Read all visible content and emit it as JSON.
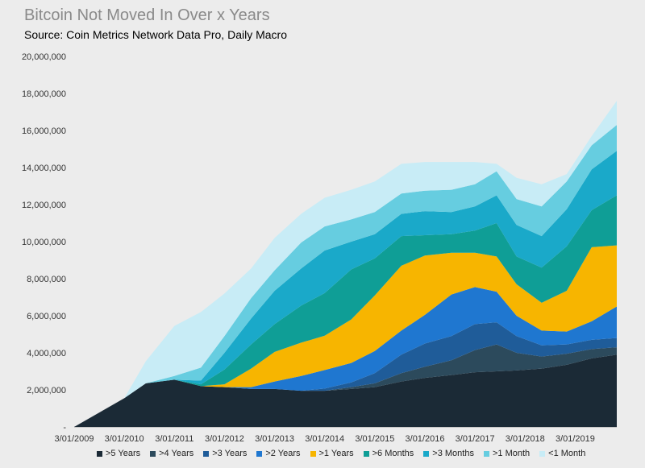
{
  "chart_data": {
    "type": "area",
    "title": "Bitcoin Not Moved In Over x Years",
    "subtitle": "Source: Coin Metrics Network Data Pro, Daily Macro",
    "xlabel": "",
    "ylabel": "",
    "ylim": [
      0,
      20000000
    ],
    "y_ticks": [
      "-",
      "2,000,000",
      "4,000,000",
      "6,000,000",
      "8,000,000",
      "10,000,000",
      "12,000,000",
      "14,000,000",
      "16,000,000",
      "18,000,000",
      "20,000,000"
    ],
    "x_ticks": [
      "3/01/2009",
      "3/01/2010",
      "3/01/2011",
      "3/01/2012",
      "3/01/2013",
      "3/01/2014",
      "3/01/2015",
      "3/01/2016",
      "3/01/2017",
      "3/01/2018",
      "3/01/2019"
    ],
    "x": [
      2009.17,
      2010.17,
      2010.6,
      2011.17,
      2011.7,
      2012.17,
      2012.7,
      2013.17,
      2013.7,
      2014.17,
      2014.7,
      2015.17,
      2015.7,
      2016.17,
      2016.7,
      2017.17,
      2017.6,
      2018.0,
      2018.5,
      2019.0,
      2019.5,
      2020.0
    ],
    "series": [
      {
        "name": ">5 Years",
        "color": "#1b2a36",
        "values": [
          0,
          1550000,
          2350000,
          2550000,
          2200000,
          2150000,
          2050000,
          2050000,
          1950000,
          1950000,
          2050000,
          2150000,
          2450000,
          2650000,
          2800000,
          2950000,
          3000000,
          3050000,
          3150000,
          3350000,
          3700000,
          3900000
        ]
      },
      {
        "name": ">4 Years",
        "color": "#2c4a5c",
        "values": [
          0,
          0,
          0,
          0,
          0,
          0,
          0,
          0,
          0,
          0,
          100000,
          200000,
          450000,
          600000,
          800000,
          1200000,
          1450000,
          950000,
          650000,
          600000,
          500000,
          400000
        ]
      },
      {
        "name": ">3 Years",
        "color": "#1f5c99",
        "values": [
          0,
          0,
          0,
          0,
          0,
          0,
          0,
          0,
          0,
          120000,
          250000,
          550000,
          1000000,
          1250000,
          1300000,
          1400000,
          1200000,
          900000,
          600000,
          500000,
          500000,
          500000
        ]
      },
      {
        "name": ">2 Years",
        "color": "#1f77d0",
        "values": [
          0,
          0,
          0,
          0,
          0,
          0,
          100000,
          400000,
          800000,
          1000000,
          1050000,
          1200000,
          1300000,
          1550000,
          2250000,
          2000000,
          1650000,
          1100000,
          800000,
          700000,
          1000000,
          1700000
        ]
      },
      {
        "name": ">1 Years",
        "color": "#f7b500",
        "values": [
          0,
          0,
          0,
          0,
          0,
          150000,
          1000000,
          1600000,
          1800000,
          1850000,
          2350000,
          3000000,
          3500000,
          3200000,
          2250000,
          1850000,
          1900000,
          1700000,
          1500000,
          2200000,
          4000000,
          3300000
        ]
      },
      {
        "name": ">6 Months",
        "color": "#0f9e96",
        "values": [
          0,
          0,
          0,
          0,
          100000,
          800000,
          1300000,
          1500000,
          2000000,
          2300000,
          2700000,
          2000000,
          1600000,
          1100000,
          1000000,
          1200000,
          1800000,
          1500000,
          1900000,
          2400000,
          2000000,
          2700000
        ]
      },
      {
        "name": ">3 Months",
        "color": "#1aa9c9",
        "values": [
          0,
          0,
          0,
          0,
          200000,
          900000,
          1400000,
          1800000,
          2000000,
          2300000,
          1500000,
          1300000,
          1200000,
          1300000,
          1200000,
          1300000,
          1500000,
          1700000,
          1700000,
          2000000,
          2200000,
          2400000
        ]
      },
      {
        "name": ">1 Month",
        "color": "#66cde0",
        "values": [
          0,
          0,
          0,
          200000,
          700000,
          900000,
          1100000,
          1100000,
          1400000,
          1300000,
          1200000,
          1200000,
          1100000,
          1100000,
          1200000,
          1200000,
          1300000,
          1400000,
          1600000,
          1500000,
          1300000,
          1400000
        ]
      },
      {
        "name": "<1 Month",
        "color": "#c8ecf6",
        "values": [
          0,
          0,
          1200000,
          2700000,
          3000000,
          2300000,
          1600000,
          1750000,
          1550000,
          1550000,
          1600000,
          1650000,
          1600000,
          1550000,
          1500000,
          1200000,
          400000,
          1150000,
          1200000,
          400000,
          500000,
          1300000
        ]
      }
    ]
  }
}
